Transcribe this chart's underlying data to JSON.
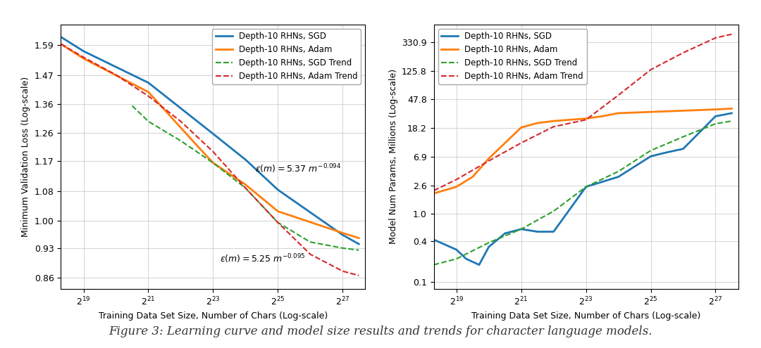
{
  "left_plot": {
    "xlabel": "Training Data Set Size, Number of Chars (Log-scale)",
    "ylabel": "Minimum Validation Loss (Log-scale)",
    "x_ticks": [
      19,
      21,
      23,
      25,
      27
    ],
    "ytick_vals": [
      0.86,
      0.93,
      1.0,
      1.08,
      1.17,
      1.26,
      1.36,
      1.47,
      1.59
    ],
    "ytick_labels": [
      "0.86",
      "0.93",
      "1.00",
      "1.08",
      "1.17",
      "1.26",
      "1.36",
      "1.47",
      "1.59"
    ],
    "ylim_log": [
      0.835,
      1.68
    ],
    "xlim_exp": [
      18.3,
      27.7
    ],
    "sgd_x": [
      18.3,
      19,
      21,
      23,
      24,
      25,
      27,
      27.5
    ],
    "sgd_y": [
      1.625,
      1.565,
      1.44,
      1.258,
      1.175,
      1.085,
      0.963,
      0.94
    ],
    "adam_x": [
      18.3,
      19,
      21,
      22.5,
      23,
      24,
      25,
      27,
      27.5
    ],
    "adam_y": [
      1.595,
      1.535,
      1.405,
      1.22,
      1.165,
      1.1,
      1.025,
      0.968,
      0.955
    ],
    "sgd_trend_x": [
      20.5,
      21,
      22,
      23,
      24,
      25,
      26,
      27,
      27.5
    ],
    "sgd_trend_y": [
      1.355,
      1.3,
      1.235,
      1.165,
      1.09,
      0.995,
      0.945,
      0.93,
      0.925
    ],
    "adam_trend_x": [
      18.3,
      19,
      20,
      21,
      22,
      23,
      24,
      25,
      26,
      27,
      27.5
    ],
    "adam_trend_y": [
      1.595,
      1.54,
      1.47,
      1.39,
      1.3,
      1.2,
      1.09,
      0.995,
      0.915,
      0.875,
      0.865
    ],
    "ann_sgd_text": "ε(m) = 5.37 m",
    "ann_sgd_exp": "-0.094",
    "ann_adam_text": "ε(m) = 5.25 m",
    "ann_adam_exp": "-0.095",
    "ann_sgd_x_exp": 24.3,
    "ann_sgd_y": 1.135,
    "ann_adam_x_exp": 23.2,
    "ann_adam_y": 0.895
  },
  "right_plot": {
    "xlabel": "Training Data Set Size, Number of Chars (Log-scale)",
    "ylabel": "Model Num Params, Millions (Log-scale)",
    "x_ticks": [
      19,
      21,
      23,
      25,
      27
    ],
    "ytick_vals": [
      0.1,
      0.4,
      1.0,
      2.6,
      6.9,
      18.2,
      47.8,
      125.8,
      330.9
    ],
    "ytick_labels": [
      "0.1",
      "0.4",
      "1.0",
      "2.6",
      "6.9",
      "18.2",
      "47.8",
      "125.8",
      "330.9"
    ],
    "ylim_log": [
      0.08,
      600
    ],
    "xlim_exp": [
      18.3,
      27.7
    ],
    "sgd_x": [
      18.3,
      19,
      19.3,
      19.7,
      20,
      20.5,
      21,
      21.3,
      21.5,
      22,
      23,
      24,
      25,
      25.5,
      26,
      27,
      27.5
    ],
    "sgd_y": [
      0.42,
      0.3,
      0.22,
      0.18,
      0.33,
      0.52,
      0.6,
      0.57,
      0.55,
      0.55,
      2.5,
      3.5,
      7.0,
      8.0,
      9.0,
      27.0,
      30.0
    ],
    "adam_x": [
      18.3,
      19,
      19.5,
      20,
      21,
      21.5,
      22,
      22.5,
      23,
      23.5,
      24,
      27,
      27.5
    ],
    "adam_y": [
      2.0,
      2.5,
      3.5,
      6.5,
      18.5,
      21.5,
      23.0,
      24.0,
      25.0,
      27.0,
      30.0,
      34.0,
      35.0
    ],
    "sgd_trend_x": [
      18.3,
      19,
      20,
      21,
      22,
      23,
      24,
      25,
      26,
      27,
      27.5
    ],
    "sgd_trend_y": [
      0.18,
      0.22,
      0.38,
      0.6,
      1.1,
      2.5,
      4.2,
      8.5,
      13.5,
      21.0,
      23.0
    ],
    "adam_trend_x": [
      18.3,
      19,
      20,
      21,
      22,
      23,
      24,
      25,
      26,
      27,
      27.5
    ],
    "adam_trend_y": [
      2.2,
      3.2,
      6.0,
      11.0,
      19.0,
      24.0,
      55.0,
      130.0,
      230.0,
      380.0,
      430.0
    ]
  },
  "legend_labels": [
    "Depth-10 RHNs, SGD",
    "Depth-10 RHNs, Adam",
    "Depth-10 RHNs, SGD Trend",
    "Depth-10 RHNs, Adam Trend"
  ],
  "sgd_color": "#1f77b4",
  "adam_color": "#ff7f0e",
  "sgd_trend_color": "#2ca02c",
  "adam_trend_color": "#d62728",
  "figure_caption": "Figure 3: Learning curve and model size results and trends for character language models.",
  "background_color": "#ffffff",
  "axes_bg_color": "#ffffff",
  "grid_color": "#cccccc"
}
